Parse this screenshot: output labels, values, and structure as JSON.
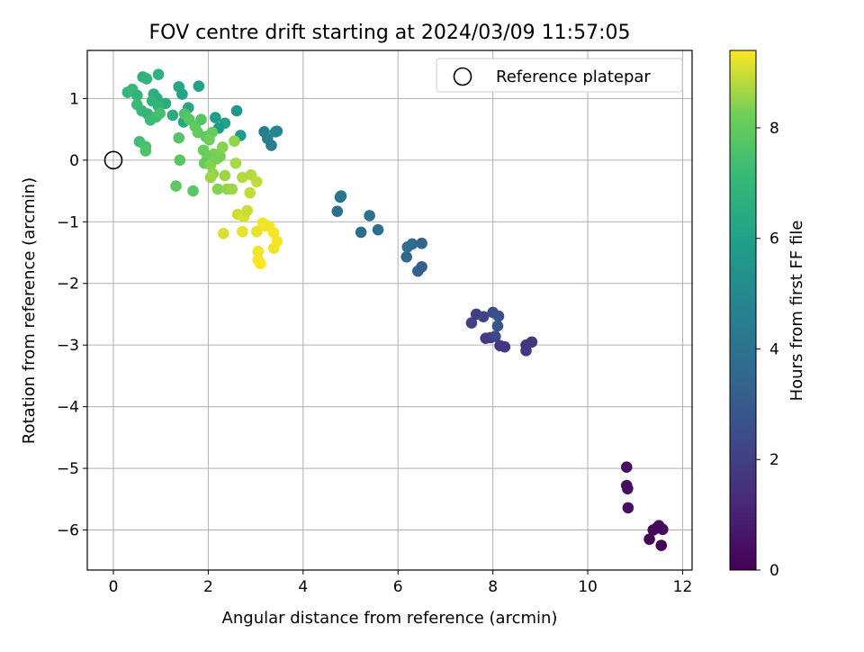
{
  "chart_data": {
    "type": "scatter",
    "title": "FOV centre drift starting at 2024/03/09 11:57:05",
    "xlabel": "Angular distance from reference (arcmin)",
    "ylabel": "Rotation from reference (arcmin)",
    "xlim": [
      -0.55,
      12.2
    ],
    "ylim": [
      -6.65,
      1.78
    ],
    "x_ticks": [
      0,
      2,
      4,
      6,
      8,
      10,
      12
    ],
    "y_ticks": [
      1,
      0,
      -1,
      -2,
      -3,
      -4,
      -5,
      -6
    ],
    "grid": true,
    "legend": {
      "position": "top-right",
      "entries": [
        "Reference platepar"
      ]
    },
    "reference_point": {
      "label": "Reference platepar",
      "x": 0,
      "y": 0
    },
    "colorbar": {
      "label": "Hours from first FF file",
      "range": [
        0,
        9.4
      ],
      "ticks": [
        0,
        2,
        4,
        6,
        8
      ],
      "colormap": "viridis"
    },
    "points": [
      {
        "x": 10.82,
        "y": -4.98,
        "h": 0.3
      },
      {
        "x": 10.82,
        "y": -5.28,
        "h": 0.35
      },
      {
        "x": 10.84,
        "y": -5.33,
        "h": 0.4
      },
      {
        "x": 10.85,
        "y": -5.64,
        "h": 0.45
      },
      {
        "x": 11.3,
        "y": -6.15,
        "h": 0.1
      },
      {
        "x": 11.38,
        "y": -6.0,
        "h": 0.15
      },
      {
        "x": 11.45,
        "y": -5.97,
        "h": 0.2
      },
      {
        "x": 11.5,
        "y": -5.93,
        "h": 0.22
      },
      {
        "x": 11.58,
        "y": -5.99,
        "h": 0.25
      },
      {
        "x": 11.55,
        "y": -6.25,
        "h": 0.05
      },
      {
        "x": 7.55,
        "y": -2.64,
        "h": 2.1
      },
      {
        "x": 7.65,
        "y": -2.5,
        "h": 2.0
      },
      {
        "x": 7.8,
        "y": -2.54,
        "h": 2.15
      },
      {
        "x": 7.85,
        "y": -2.89,
        "h": 1.8
      },
      {
        "x": 7.95,
        "y": -2.88,
        "h": 1.9
      },
      {
        "x": 8.0,
        "y": -2.47,
        "h": 2.5
      },
      {
        "x": 8.05,
        "y": -2.86,
        "h": 2.3
      },
      {
        "x": 8.1,
        "y": -2.69,
        "h": 2.8
      },
      {
        "x": 8.12,
        "y": -2.53,
        "h": 2.6
      },
      {
        "x": 8.15,
        "y": -3.01,
        "h": 1.7
      },
      {
        "x": 8.25,
        "y": -3.03,
        "h": 1.75
      },
      {
        "x": 8.7,
        "y": -3.09,
        "h": 1.7
      },
      {
        "x": 8.7,
        "y": -3.0,
        "h": 1.65
      },
      {
        "x": 8.82,
        "y": -2.95,
        "h": 1.75
      },
      {
        "x": 4.72,
        "y": -0.83,
        "h": 3.9
      },
      {
        "x": 4.78,
        "y": -0.6,
        "h": 4.2
      },
      {
        "x": 4.8,
        "y": -0.58,
        "h": 4.1
      },
      {
        "x": 5.22,
        "y": -1.17,
        "h": 3.7
      },
      {
        "x": 5.4,
        "y": -0.9,
        "h": 4.0
      },
      {
        "x": 5.58,
        "y": -1.13,
        "h": 3.8
      },
      {
        "x": 6.18,
        "y": -1.57,
        "h": 3.6
      },
      {
        "x": 6.2,
        "y": -1.41,
        "h": 3.8
      },
      {
        "x": 6.3,
        "y": -1.36,
        "h": 3.7
      },
      {
        "x": 6.5,
        "y": -1.35,
        "h": 3.4
      },
      {
        "x": 6.42,
        "y": -1.8,
        "h": 3.3
      },
      {
        "x": 6.5,
        "y": -1.73,
        "h": 3.2
      },
      {
        "x": 3.18,
        "y": 0.46,
        "h": 4.6
      },
      {
        "x": 3.25,
        "y": 0.35,
        "h": 4.7
      },
      {
        "x": 3.33,
        "y": 0.24,
        "h": 4.5
      },
      {
        "x": 3.42,
        "y": 0.46,
        "h": 4.8
      },
      {
        "x": 3.45,
        "y": 0.47,
        "h": 4.9
      },
      {
        "x": 2.6,
        "y": 0.8,
        "h": 5.6
      },
      {
        "x": 2.68,
        "y": 0.4,
        "h": 5.7
      },
      {
        "x": 2.15,
        "y": 0.69,
        "h": 5.9
      },
      {
        "x": 2.35,
        "y": 0.6,
        "h": 6.0
      },
      {
        "x": 2.22,
        "y": 0.52,
        "h": 5.8
      },
      {
        "x": 1.8,
        "y": 1.2,
        "h": 6.1
      },
      {
        "x": 1.38,
        "y": 1.19,
        "h": 6.3
      },
      {
        "x": 1.45,
        "y": 1.07,
        "h": 6.2
      },
      {
        "x": 1.58,
        "y": 0.85,
        "h": 6.2
      },
      {
        "x": 1.25,
        "y": 0.73,
        "h": 6.5
      },
      {
        "x": 1.48,
        "y": 0.62,
        "h": 6.4
      },
      {
        "x": 1.1,
        "y": 0.92,
        "h": 6.6
      },
      {
        "x": 0.95,
        "y": 1.39,
        "h": 6.8
      },
      {
        "x": 0.62,
        "y": 1.35,
        "h": 6.7
      },
      {
        "x": 0.7,
        "y": 1.32,
        "h": 6.9
      },
      {
        "x": 0.3,
        "y": 1.1,
        "h": 7.0
      },
      {
        "x": 0.4,
        "y": 1.15,
        "h": 7.1
      },
      {
        "x": 0.5,
        "y": 1.05,
        "h": 6.9
      },
      {
        "x": 0.85,
        "y": 1.07,
        "h": 6.7
      },
      {
        "x": 0.92,
        "y": 1.0,
        "h": 6.6
      },
      {
        "x": 0.82,
        "y": 0.96,
        "h": 6.8
      },
      {
        "x": 0.95,
        "y": 0.87,
        "h": 6.9
      },
      {
        "x": 0.5,
        "y": 0.9,
        "h": 7.2
      },
      {
        "x": 0.6,
        "y": 0.8,
        "h": 7.1
      },
      {
        "x": 0.72,
        "y": 0.75,
        "h": 7.0
      },
      {
        "x": 0.78,
        "y": 0.65,
        "h": 7.2
      },
      {
        "x": 0.9,
        "y": 0.7,
        "h": 7.3
      },
      {
        "x": 0.98,
        "y": 0.76,
        "h": 7.4
      },
      {
        "x": 0.55,
        "y": 0.3,
        "h": 7.3
      },
      {
        "x": 0.68,
        "y": 0.22,
        "h": 7.5
      },
      {
        "x": 0.68,
        "y": 0.15,
        "h": 7.6
      },
      {
        "x": 1.38,
        "y": 0.36,
        "h": 7.7
      },
      {
        "x": 1.4,
        "y": 0.0,
        "h": 7.8
      },
      {
        "x": 1.32,
        "y": -0.42,
        "h": 7.9
      },
      {
        "x": 1.68,
        "y": -0.5,
        "h": 7.8
      },
      {
        "x": 1.5,
        "y": 0.75,
        "h": 7.6
      },
      {
        "x": 1.6,
        "y": 0.66,
        "h": 7.8
      },
      {
        "x": 1.72,
        "y": 0.55,
        "h": 7.9
      },
      {
        "x": 1.85,
        "y": 0.66,
        "h": 7.7
      },
      {
        "x": 1.78,
        "y": 0.45,
        "h": 8.0
      },
      {
        "x": 1.95,
        "y": 0.38,
        "h": 7.9
      },
      {
        "x": 2.08,
        "y": 0.45,
        "h": 8.1
      },
      {
        "x": 2.02,
        "y": 0.33,
        "h": 8.2
      },
      {
        "x": 1.9,
        "y": 0.16,
        "h": 8.1
      },
      {
        "x": 2.12,
        "y": 0.1,
        "h": 8.3
      },
      {
        "x": 1.98,
        "y": 0.05,
        "h": 8.2
      },
      {
        "x": 1.92,
        "y": -0.05,
        "h": 8.0
      },
      {
        "x": 2.05,
        "y": -0.08,
        "h": 8.4
      },
      {
        "x": 2.18,
        "y": 0.02,
        "h": 8.3
      },
      {
        "x": 2.25,
        "y": 0.06,
        "h": 8.3
      },
      {
        "x": 2.3,
        "y": 0.21,
        "h": 8.4
      },
      {
        "x": 2.55,
        "y": 0.31,
        "h": 8.5
      },
      {
        "x": 2.1,
        "y": -0.22,
        "h": 8.5
      },
      {
        "x": 2.05,
        "y": -0.28,
        "h": 8.6
      },
      {
        "x": 2.35,
        "y": -0.25,
        "h": 8.6
      },
      {
        "x": 2.2,
        "y": -0.47,
        "h": 8.4
      },
      {
        "x": 2.4,
        "y": -0.47,
        "h": 8.5
      },
      {
        "x": 2.5,
        "y": -0.47,
        "h": 8.6
      },
      {
        "x": 2.58,
        "y": -0.05,
        "h": 8.7
      },
      {
        "x": 2.72,
        "y": -0.28,
        "h": 8.8
      },
      {
        "x": 2.9,
        "y": -0.24,
        "h": 8.8
      },
      {
        "x": 2.88,
        "y": -0.53,
        "h": 8.9
      },
      {
        "x": 3.02,
        "y": -0.35,
        "h": 8.9
      },
      {
        "x": 2.62,
        "y": -0.88,
        "h": 9.0
      },
      {
        "x": 2.75,
        "y": -0.92,
        "h": 9.1
      },
      {
        "x": 2.82,
        "y": -0.82,
        "h": 9.0
      },
      {
        "x": 2.72,
        "y": -1.16,
        "h": 9.2
      },
      {
        "x": 2.32,
        "y": -1.19,
        "h": 9.1
      },
      {
        "x": 3.02,
        "y": -1.16,
        "h": 9.2
      },
      {
        "x": 3.15,
        "y": -1.02,
        "h": 9.3
      },
      {
        "x": 3.2,
        "y": -1.07,
        "h": 9.3
      },
      {
        "x": 3.28,
        "y": -1.07,
        "h": 9.3
      },
      {
        "x": 3.38,
        "y": -1.18,
        "h": 9.35
      },
      {
        "x": 3.45,
        "y": -1.32,
        "h": 9.35
      },
      {
        "x": 3.38,
        "y": -1.43,
        "h": 9.3
      },
      {
        "x": 3.05,
        "y": -1.48,
        "h": 9.3
      },
      {
        "x": 3.05,
        "y": -1.62,
        "h": 9.35
      },
      {
        "x": 3.1,
        "y": -1.68,
        "h": 9.4
      }
    ]
  }
}
